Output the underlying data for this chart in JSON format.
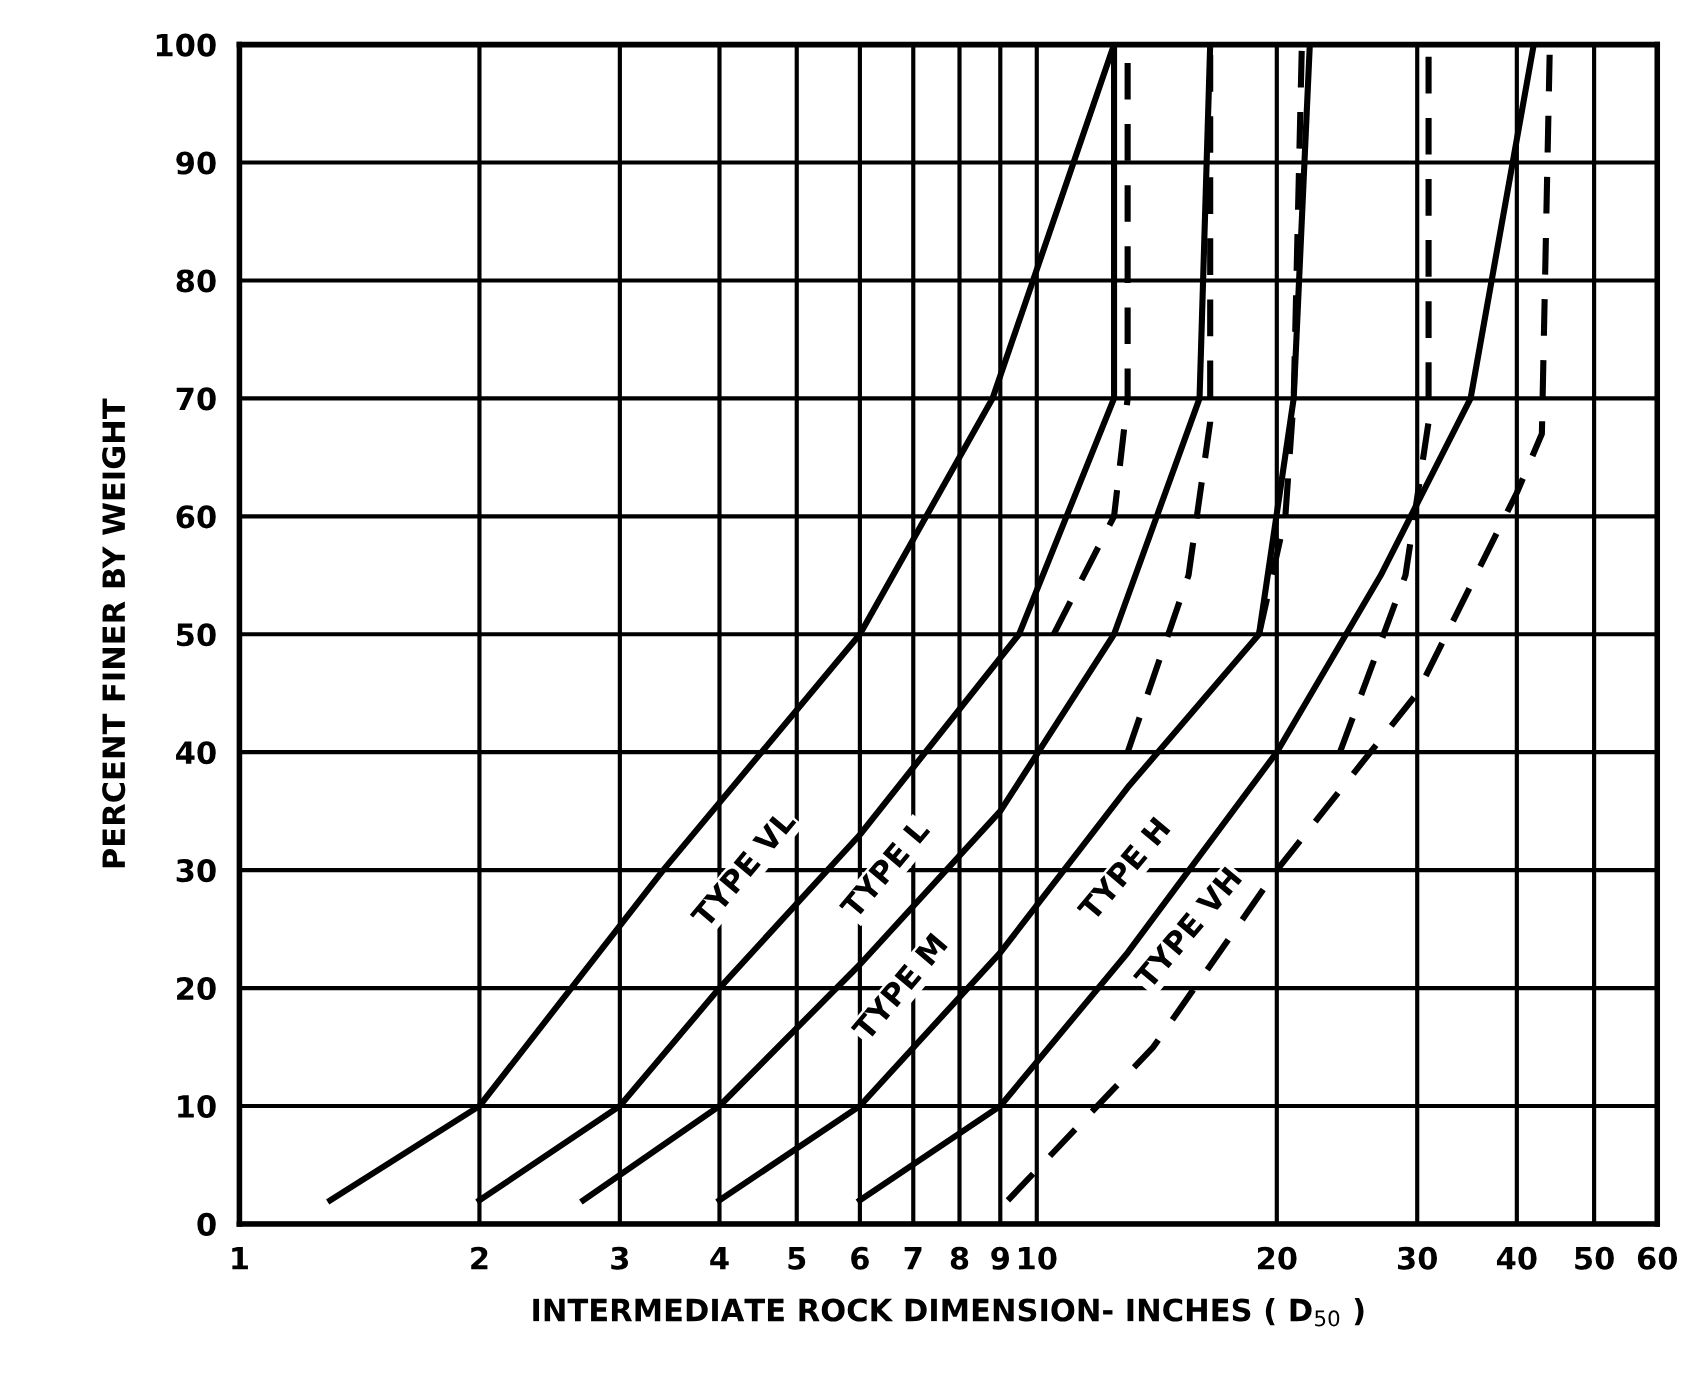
{
  "chart_data": {
    "type": "line",
    "log": "x",
    "grid": true,
    "legend": false,
    "marker": "none",
    "xlabel": "INTERMEDIATE ROCK DIMENSION- INCHES ( D$_{50}$ )",
    "ylabel": "PERCENT FINER BY WEIGHT",
    "xlim": [
      1,
      60
    ],
    "ylim": [
      0,
      100
    ],
    "xticks": [
      1,
      2,
      3,
      4,
      5,
      6,
      7,
      8,
      9,
      10,
      20,
      30,
      40,
      50,
      60
    ],
    "yticks": [
      0,
      10,
      20,
      30,
      40,
      50,
      60,
      70,
      80,
      90,
      100
    ],
    "series": [
      {
        "color": "#000000",
        "line_style": "solid",
        "x": [
          1.3,
          2,
          3.4,
          6,
          8.8,
          12.5
        ],
        "values": [
          2,
          10,
          30,
          50,
          70,
          100
        ]
      },
      {
        "color": "#000000",
        "line_style": "solid",
        "x": [
          2,
          3,
          4,
          6,
          9.5,
          12.5,
          12.5
        ],
        "values": [
          2,
          10,
          20,
          33,
          50,
          70,
          100
        ]
      },
      {
        "color": "#000000",
        "line_style": "solid",
        "x": [
          2.7,
          4,
          6,
          9,
          12.5,
          16,
          16.5
        ],
        "values": [
          2,
          10,
          22,
          35,
          50,
          70,
          100
        ]
      },
      {
        "color": "#000000",
        "line_style": "solid",
        "x": [
          4,
          6,
          9,
          13,
          19,
          21,
          22
        ],
        "values": [
          2,
          10,
          23,
          37,
          50,
          70,
          100
        ]
      },
      {
        "color": "#000000",
        "line_style": "solid",
        "x": [
          6,
          9,
          13,
          20,
          27,
          35,
          42
        ],
        "values": [
          2,
          10,
          23,
          40,
          55,
          70,
          100
        ]
      },
      {
        "color": "#000000",
        "line_style": "dashed",
        "x": [
          10.5,
          12.5,
          13,
          13
        ],
        "values": [
          50,
          60,
          70,
          100
        ]
      },
      {
        "color": "#000000",
        "line_style": "dashed",
        "x": [
          13,
          15.5,
          16.5,
          16.5
        ],
        "values": [
          40,
          55,
          68,
          100
        ]
      },
      {
        "color": "#000000",
        "line_style": "dashed",
        "x": [
          19,
          20.5,
          21,
          21.5
        ],
        "values": [
          50,
          60,
          70,
          100
        ]
      },
      {
        "color": "#000000",
        "line_style": "dashed",
        "x": [
          24,
          29,
          31,
          31
        ],
        "values": [
          40,
          55,
          68,
          100
        ]
      },
      {
        "color": "#000000",
        "line_style": "dashed",
        "x": [
          9.2,
          14,
          20,
          30,
          40,
          43,
          44
        ],
        "values": [
          2,
          15,
          30,
          45,
          62,
          67,
          100
        ]
      }
    ],
    "annotations": [
      "TYPE VL",
      "TYPE L",
      "TYPE M",
      "TYPE H",
      "TYPE VH"
    ]
  }
}
